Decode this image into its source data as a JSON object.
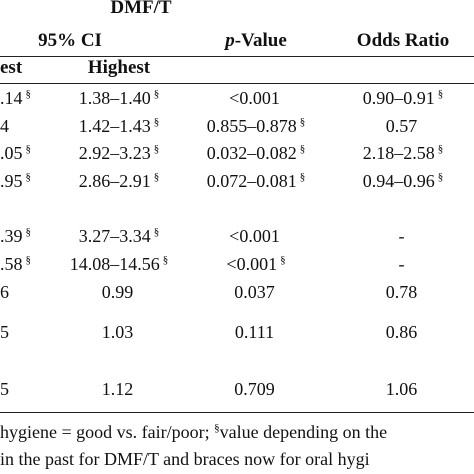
{
  "header": {
    "group_label": "DMF/T",
    "ci_label": "95% CI",
    "p_value_italic": "p",
    "p_value_rest": "-Value",
    "odds_ratio_label": "Odds Ratio",
    "lowest_label_partial": "est",
    "highest_label": "Highest"
  },
  "rows": [
    {
      "lowest": ".14",
      "lowest_sup": "§",
      "highest": "1.38–1.40",
      "highest_sup": "§",
      "p": "<0.001",
      "p_sup": "",
      "or": "0.90–0.91",
      "or_sup": "§"
    },
    {
      "lowest": "4",
      "lowest_sup": "",
      "highest": "1.42–1.43",
      "highest_sup": "§",
      "p": "0.855–0.878",
      "p_sup": "§",
      "or": "0.57",
      "or_sup": ""
    },
    {
      "lowest": ".05",
      "lowest_sup": "§",
      "highest": "2.92–3.23",
      "highest_sup": "§",
      "p": "0.032–0.082",
      "p_sup": "§",
      "or": "2.18–2.58",
      "or_sup": "§"
    },
    {
      "lowest": ".95",
      "lowest_sup": "§",
      "highest": "2.86–2.91",
      "highest_sup": "§",
      "p": "0.072–0.081",
      "p_sup": "§",
      "or": "0.94–0.96",
      "or_sup": "§"
    },
    {
      "lowest": ".39",
      "lowest_sup": "§",
      "highest": "3.27–3.34",
      "highest_sup": "§",
      "p": "<0.001",
      "p_sup": "",
      "or": "-",
      "or_sup": ""
    },
    {
      "lowest": ".58",
      "lowest_sup": "§",
      "highest": "14.08–14.56",
      "highest_sup": "§",
      "p": "<0.001",
      "p_sup": "§",
      "or": "-",
      "or_sup": ""
    },
    {
      "lowest": "6",
      "lowest_sup": "",
      "highest": "0.99",
      "highest_sup": "",
      "p": "0.037",
      "p_sup": "",
      "or": "0.78",
      "or_sup": ""
    },
    {
      "lowest": "5",
      "lowest_sup": "",
      "highest": "1.03",
      "highest_sup": "",
      "p": "0.111",
      "p_sup": "",
      "or": "0.86",
      "or_sup": ""
    },
    {
      "lowest": "5",
      "lowest_sup": "",
      "highest": "1.12",
      "highest_sup": "",
      "p": "0.709",
      "p_sup": "",
      "or": "1.06",
      "or_sup": ""
    }
  ],
  "footnote": {
    "line1_a": "hygiene = good vs. fair/poor; ",
    "line1_sup": "§",
    "line1_b": "value depending on the",
    "line2": "in the past for DMF/T and braces now for oral hygi"
  }
}
